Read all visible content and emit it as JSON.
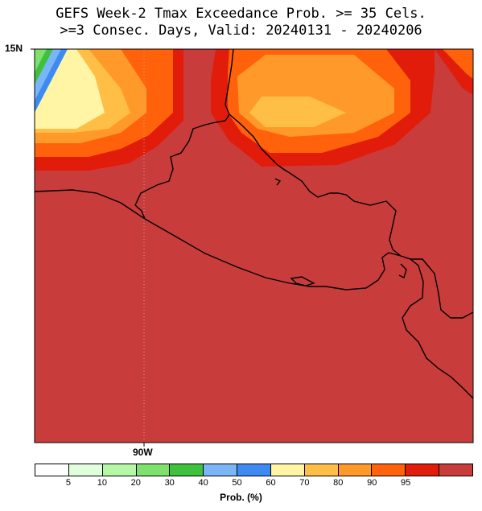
{
  "title_line1": "GEFS Week-2 Tmax Exceedance Prob. >= 35 Cels.",
  "title_line2": ">=3 Consec. Days, Valid: 20240131 - 20240206",
  "lat_label": "15N",
  "lon_label": "90W",
  "colorbar": {
    "title": "Prob. (%)",
    "colors": [
      "#ffffff",
      "#e1ffdc",
      "#b4f7a5",
      "#7ee06d",
      "#3ec13c",
      "#7ab5f5",
      "#3d8bf2",
      "#fff5a5",
      "#ffbe46",
      "#ff9a2a",
      "#ff620a",
      "#e11c0a",
      "#c83c3c"
    ],
    "labels": [
      "5",
      "10",
      "20",
      "30",
      "40",
      "50",
      "60",
      "70",
      "80",
      "90",
      "95"
    ]
  },
  "map": {
    "region": "El Salvador / Central America",
    "background_probability_level": ">95",
    "graticule": "dotted line at 90W"
  }
}
